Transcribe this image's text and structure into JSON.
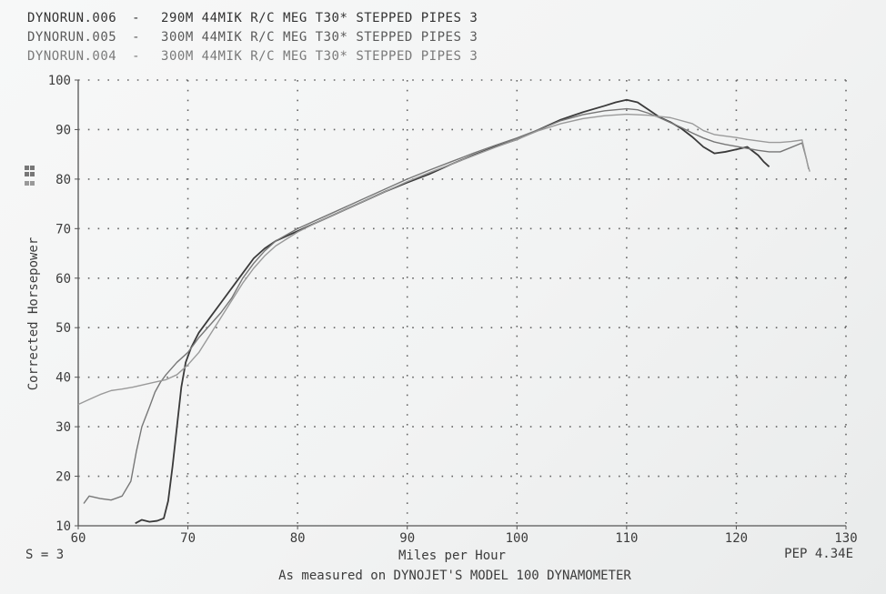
{
  "chart_data": {
    "type": "line",
    "header_lines": [
      {
        "run": "DYNORUN.006",
        "desc": "290M 44MIK R/C MEG T30* STEPPED PIPES 3",
        "color": "#3a3a3a"
      },
      {
        "run": "DYNORUN.005",
        "desc": "300M 44MIK R/C MEG T30* STEPPED PIPES 3",
        "color": "#777777"
      },
      {
        "run": "DYNORUN.004",
        "desc": "300M 44MIK R/C MEG T30* STEPPED PIPES 3",
        "color": "#9a9a9a"
      }
    ],
    "header_dash": "-",
    "xlabel": "Miles per Hour",
    "ylabel": "Corrected Horsepower",
    "footer_left": "S = 3",
    "footer_right": "PEP 4.34E",
    "footer_center": "As measured on DYNOJET'S MODEL 100 DYNAMOMETER",
    "xlim": [
      60,
      130
    ],
    "ylim": [
      10,
      100
    ],
    "x_ticks": [
      60,
      70,
      80,
      90,
      100,
      110,
      120,
      130
    ],
    "y_ticks": [
      10,
      20,
      30,
      40,
      50,
      60,
      70,
      80,
      90,
      100
    ],
    "grid": true,
    "legend": "header",
    "series": [
      {
        "color": "#3a3a3a",
        "points": [
          [
            65.2,
            10.5
          ],
          [
            65.8,
            11.2
          ],
          [
            66.5,
            10.8
          ],
          [
            67.2,
            11.0
          ],
          [
            67.8,
            11.5
          ],
          [
            68.2,
            15
          ],
          [
            68.6,
            22
          ],
          [
            69.0,
            30
          ],
          [
            69.4,
            38
          ],
          [
            69.8,
            43
          ],
          [
            70.3,
            46
          ],
          [
            71,
            49
          ],
          [
            72,
            52
          ],
          [
            73,
            55
          ],
          [
            74,
            58
          ],
          [
            75,
            61
          ],
          [
            76,
            64
          ],
          [
            77,
            66
          ],
          [
            78,
            67.5
          ],
          [
            80,
            69.5
          ],
          [
            82,
            71.5
          ],
          [
            84,
            73.5
          ],
          [
            86,
            75.5
          ],
          [
            88,
            77.5
          ],
          [
            90,
            79.3
          ],
          [
            92,
            81
          ],
          [
            94,
            83
          ],
          [
            96,
            84.8
          ],
          [
            98,
            86.5
          ],
          [
            100,
            88
          ],
          [
            102,
            90
          ],
          [
            104,
            92
          ],
          [
            106,
            93.5
          ],
          [
            108,
            94.8
          ],
          [
            109,
            95.5
          ],
          [
            110,
            96
          ],
          [
            111,
            95.5
          ],
          [
            112,
            94
          ],
          [
            113,
            92.5
          ],
          [
            114,
            91.5
          ],
          [
            115,
            90.2
          ],
          [
            116,
            88.5
          ],
          [
            117,
            86.5
          ],
          [
            118,
            85.2
          ],
          [
            119,
            85.5
          ],
          [
            120,
            86
          ],
          [
            121,
            86.5
          ],
          [
            122,
            84.8
          ],
          [
            122.5,
            83.5
          ],
          [
            123,
            82.5
          ]
        ]
      },
      {
        "color": "#777777",
        "points": [
          [
            60.5,
            14.5
          ],
          [
            61,
            16
          ],
          [
            62,
            15.5
          ],
          [
            63,
            15.2
          ],
          [
            64,
            16
          ],
          [
            64.8,
            19
          ],
          [
            65.3,
            25
          ],
          [
            65.8,
            30
          ],
          [
            66.5,
            34
          ],
          [
            67,
            37
          ],
          [
            67.5,
            39
          ],
          [
            68,
            40.5
          ],
          [
            69,
            43
          ],
          [
            70,
            45
          ],
          [
            71,
            48
          ],
          [
            72,
            50.5
          ],
          [
            73,
            53
          ],
          [
            74,
            56
          ],
          [
            75,
            60
          ],
          [
            76,
            63
          ],
          [
            77,
            65.5
          ],
          [
            78,
            67.5
          ],
          [
            80,
            70
          ],
          [
            82,
            72
          ],
          [
            84,
            74
          ],
          [
            86,
            76
          ],
          [
            88,
            78
          ],
          [
            90,
            80
          ],
          [
            92,
            81.8
          ],
          [
            94,
            83.5
          ],
          [
            96,
            85.2
          ],
          [
            98,
            86.8
          ],
          [
            100,
            88.3
          ],
          [
            102,
            90
          ],
          [
            104,
            91.8
          ],
          [
            106,
            93
          ],
          [
            108,
            93.8
          ],
          [
            110,
            94.2
          ],
          [
            111,
            94
          ],
          [
            112,
            93.3
          ],
          [
            113,
            92.4
          ],
          [
            114,
            91.4
          ],
          [
            115,
            90.4
          ],
          [
            116,
            89.3
          ],
          [
            117,
            88.3
          ],
          [
            118,
            87.5
          ],
          [
            119,
            87
          ],
          [
            120,
            86.6
          ],
          [
            121,
            86.2
          ],
          [
            122,
            85.8
          ],
          [
            123,
            85.5
          ],
          [
            124,
            85.5
          ],
          [
            125,
            86.4
          ],
          [
            126,
            87.3
          ],
          [
            126.4,
            84
          ],
          [
            126.6,
            82
          ]
        ]
      },
      {
        "color": "#9a9a9a",
        "points": [
          [
            60,
            34.5
          ],
          [
            61,
            35.5
          ],
          [
            62,
            36.5
          ],
          [
            63,
            37.3
          ],
          [
            64,
            37.6
          ],
          [
            65,
            38
          ],
          [
            66,
            38.5
          ],
          [
            67,
            39
          ],
          [
            68,
            39.5
          ],
          [
            69,
            40.5
          ],
          [
            70,
            42.5
          ],
          [
            71,
            45
          ],
          [
            72,
            48.5
          ],
          [
            73,
            52
          ],
          [
            74,
            55.5
          ],
          [
            75,
            59
          ],
          [
            76,
            62
          ],
          [
            77,
            64.5
          ],
          [
            78,
            66.5
          ],
          [
            80,
            69.3
          ],
          [
            82,
            71.5
          ],
          [
            84,
            73.5
          ],
          [
            86,
            75.5
          ],
          [
            88,
            77.5
          ],
          [
            90,
            79.5
          ],
          [
            92,
            81.3
          ],
          [
            94,
            83
          ],
          [
            96,
            84.7
          ],
          [
            98,
            86.4
          ],
          [
            100,
            88
          ],
          [
            102,
            89.8
          ],
          [
            104,
            91.2
          ],
          [
            106,
            92.2
          ],
          [
            108,
            92.8
          ],
          [
            110,
            93.1
          ],
          [
            112,
            92.9
          ],
          [
            114,
            92.4
          ],
          [
            116,
            91.2
          ],
          [
            117,
            89.8
          ],
          [
            118,
            89
          ],
          [
            119,
            88.7
          ],
          [
            120,
            88.4
          ],
          [
            121,
            88
          ],
          [
            122,
            87.7
          ],
          [
            123,
            87.4
          ],
          [
            124,
            87.4
          ],
          [
            125,
            87.6
          ],
          [
            126,
            87.9
          ],
          [
            126.5,
            83
          ],
          [
            126.7,
            81.5
          ]
        ]
      }
    ]
  }
}
